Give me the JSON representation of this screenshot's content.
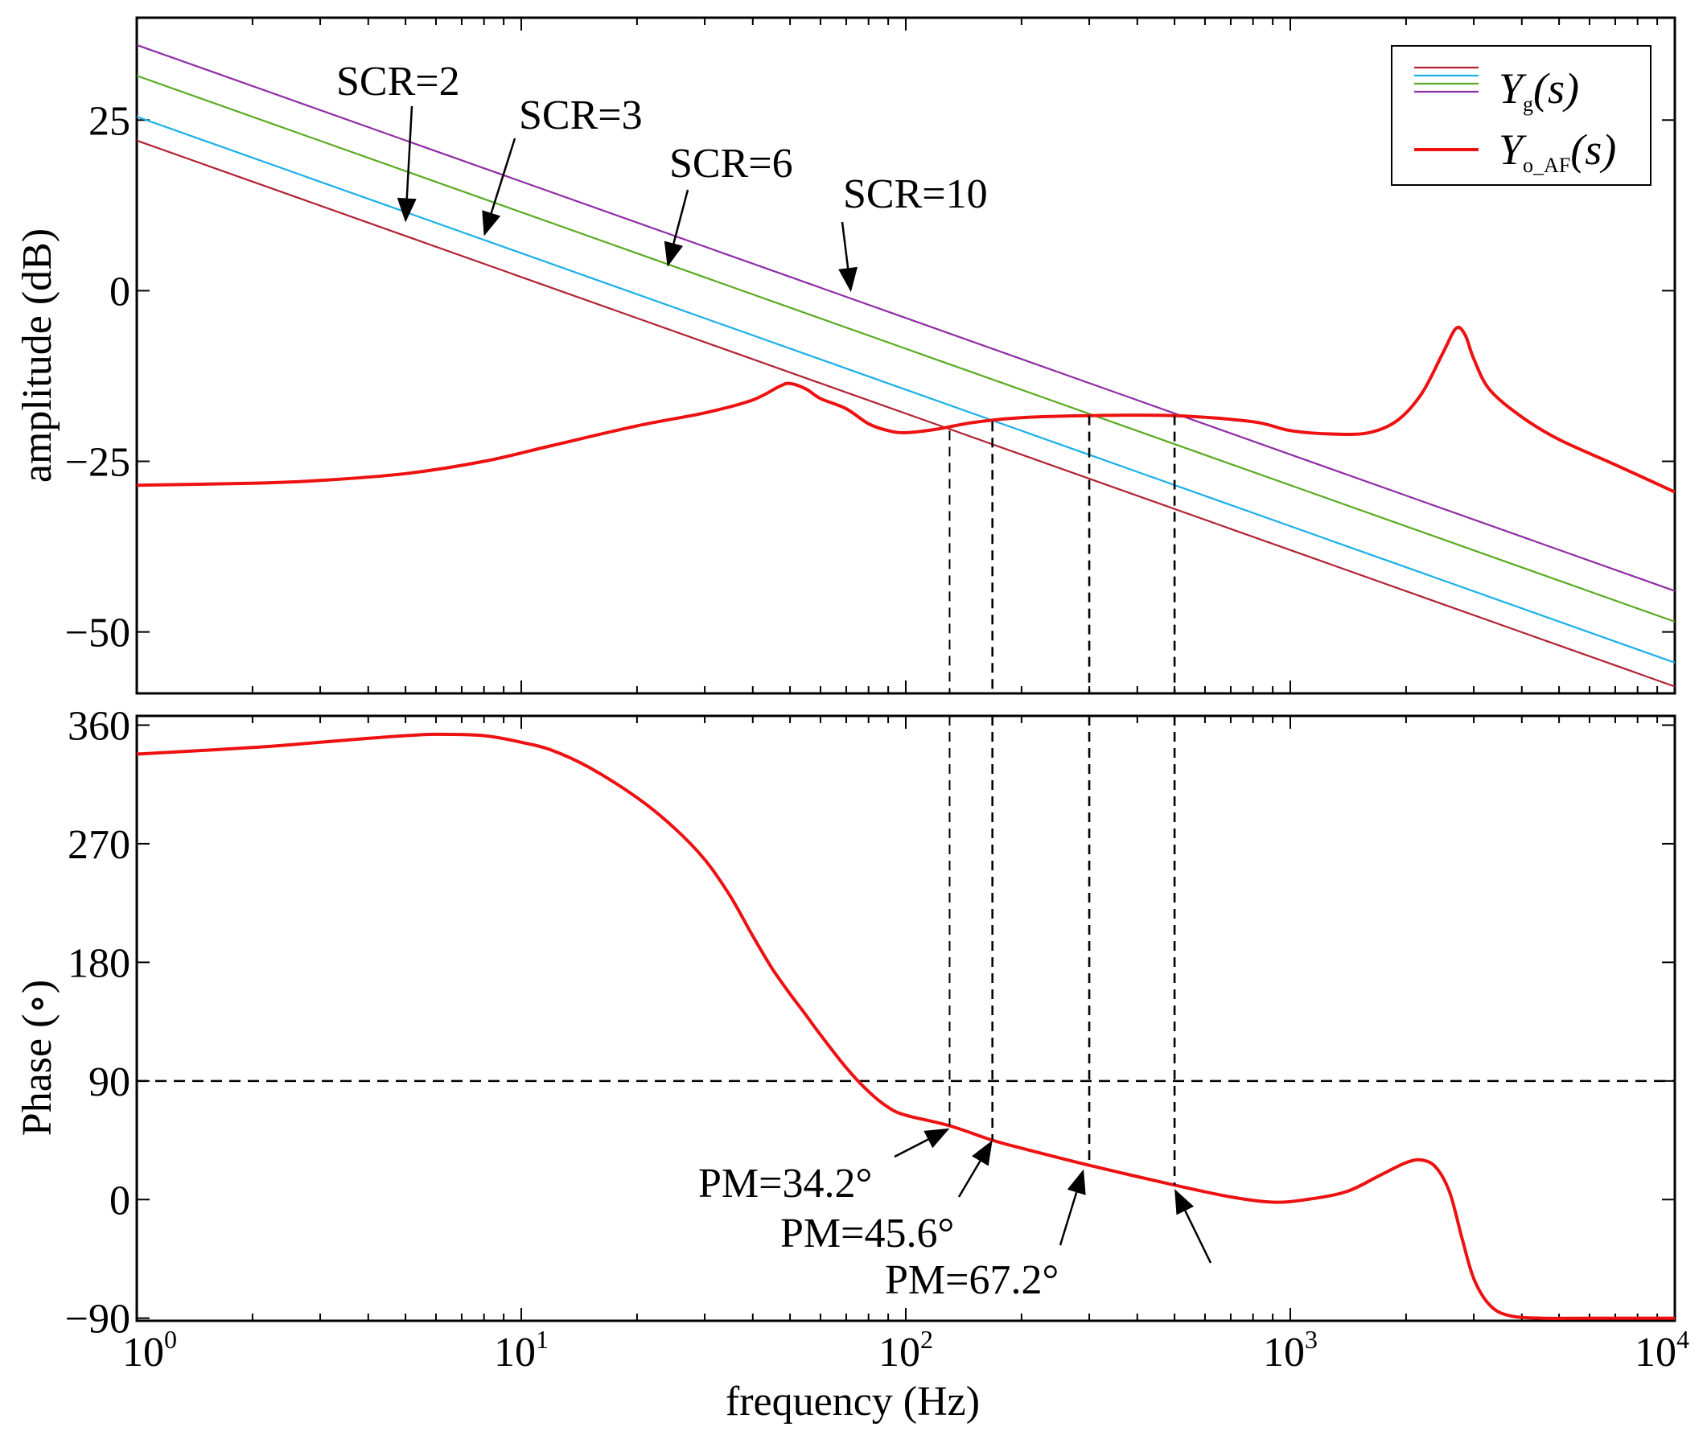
{
  "chart_data": [
    {
      "type": "line",
      "panel": "amplitude",
      "ylabel": "amplitude (dB)",
      "xscale": "log",
      "xlim": [
        1,
        10000
      ],
      "ylim": [
        -59,
        40
      ],
      "yticks": [
        25,
        0,
        -25,
        -50
      ],
      "ytick_labels": [
        "25",
        "0",
        "−25",
        "−50"
      ],
      "series": [
        {
          "name": "Yg SCR=2",
          "color": "#b22234",
          "x": [
            1,
            10000
          ],
          "y": [
            22,
            -58
          ]
        },
        {
          "name": "Yg SCR=3",
          "color": "#1ab0e8",
          "x": [
            1,
            10000
          ],
          "y": [
            25.5,
            -54.5
          ]
        },
        {
          "name": "Yg SCR=6",
          "color": "#5aaa22",
          "x": [
            1,
            10000
          ],
          "y": [
            31.5,
            -48.5
          ]
        },
        {
          "name": "Yg SCR=10",
          "color": "#8e2ea5",
          "x": [
            1,
            10000
          ],
          "y": [
            36,
            -44
          ]
        },
        {
          "name": "Yo_AF",
          "color": "#ee1111",
          "x": [
            1,
            2,
            3,
            5,
            8,
            12,
            20,
            30,
            40,
            47,
            50,
            55,
            60,
            70,
            80,
            90,
            100,
            120,
            150,
            200,
            300,
            500,
            800,
            1000,
            1300,
            1600,
            1900,
            2200,
            2500,
            2700,
            2850,
            3000,
            3300,
            4000,
            5000,
            7000,
            10000
          ],
          "y": [
            -28.5,
            -28.2,
            -27.8,
            -26.8,
            -25,
            -22.7,
            -19.8,
            -17.9,
            -16,
            -14,
            -13.6,
            -14.4,
            -15.8,
            -17.3,
            -19.5,
            -20.5,
            -20.8,
            -20.3,
            -19.3,
            -18.6,
            -18.3,
            -18.3,
            -19.2,
            -20.5,
            -21,
            -20.8,
            -19,
            -15,
            -9,
            -5.5,
            -6.5,
            -10,
            -14.5,
            -18.5,
            -21.8,
            -25.5,
            -29.5
          ]
        }
      ],
      "annotations": [
        {
          "text": "SCR=2",
          "arrow_to": {
            "x": 5,
            "y": 10
          }
        },
        {
          "text": "SCR=3",
          "arrow_to": {
            "x": 8,
            "y": 8
          }
        },
        {
          "text": "SCR=6",
          "arrow_to": {
            "x": 24,
            "y": 3.5
          }
        },
        {
          "text": "SCR=10",
          "arrow_to": {
            "x": 72,
            "y": -0.2
          }
        }
      ],
      "crossovers": [
        {
          "f": 130,
          "mag": -20.5
        },
        {
          "f": 168,
          "mag": -19.2
        },
        {
          "f": 300,
          "mag": -18.3
        },
        {
          "f": 500,
          "mag": -18.3
        }
      ],
      "legend": {
        "position": "top-right",
        "entries": [
          {
            "main": "Y",
            "sub": "g",
            "tail": "(s)",
            "colors": [
              "#b22234",
              "#1ab0e8",
              "#5aaa22",
              "#8e2ea5"
            ]
          },
          {
            "main": "Y",
            "sub": "o_AF",
            "tail": "(s)",
            "colors": [
              "#ee1111"
            ]
          }
        ]
      }
    },
    {
      "type": "line",
      "panel": "phase",
      "xlabel": "frequency (Hz)",
      "ylabel": "Phase (∘)",
      "xscale": "log",
      "xlim": [
        1,
        10000
      ],
      "ylim": [
        -92,
        367
      ],
      "yticks": [
        360,
        270,
        180,
        90,
        0,
        -90
      ],
      "ytick_labels": [
        "360",
        "270",
        "180",
        "90",
        "0",
        "−90"
      ],
      "xtick_exponents": [
        "0",
        "1",
        "2",
        "3",
        "4"
      ],
      "reference_line": {
        "y": 90,
        "style": "dashed"
      },
      "series": [
        {
          "name": "Yo_AF",
          "color": "#ee1111",
          "x": [
            1,
            2,
            3,
            4,
            5,
            6,
            8,
            10,
            12,
            15,
            20,
            25,
            30,
            35,
            40,
            45,
            50,
            55,
            60,
            70,
            80,
            90,
            100,
            130,
            168,
            200,
            300,
            500,
            700,
            900,
            1100,
            1400,
            1700,
            2000,
            2200,
            2400,
            2600,
            2800,
            3000,
            3300,
            3700,
            4500,
            6000,
            10000
          ],
          "y": [
            338,
            343,
            347,
            350,
            352,
            353,
            352,
            347,
            341,
            328,
            305,
            282,
            258,
            230,
            200,
            175,
            156,
            140,
            125,
            100,
            82,
            70,
            64,
            56,
            45,
            39,
            26,
            11,
            2,
            -2,
            0,
            6,
            18,
            28,
            30,
            24,
            5,
            -30,
            -60,
            -80,
            -88,
            -90,
            -90,
            -90
          ]
        }
      ],
      "annotations": [
        {
          "text": "PM=34.2°",
          "arrow_to": {
            "x": 130,
            "y": 54
          }
        },
        {
          "text": "PM=45.6°",
          "arrow_to": {
            "x": 168,
            "y": 45
          }
        },
        {
          "text": "PM=67.2°",
          "arrow_to": {
            "x": 290,
            "y": 23
          }
        },
        {
          "text": "",
          "arrow_to": {
            "x": 500,
            "y": 8
          }
        }
      ]
    }
  ]
}
